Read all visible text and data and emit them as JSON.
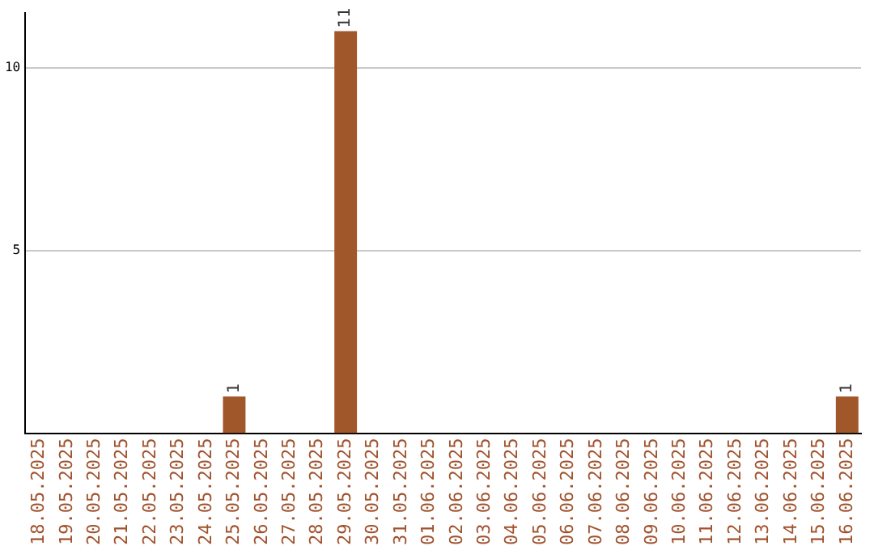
{
  "chart_data": {
    "type": "bar",
    "categories": [
      "18.05.2025",
      "19.05.2025",
      "20.05.2025",
      "21.05.2025",
      "22.05.2025",
      "23.05.2025",
      "24.05.2025",
      "25.05.2025",
      "26.05.2025",
      "27.05.2025",
      "28.05.2025",
      "29.05.2025",
      "30.05.2025",
      "31.05.2025",
      "01.06.2025",
      "02.06.2025",
      "03.06.2025",
      "04.06.2025",
      "05.06.2025",
      "06.06.2025",
      "07.06.2025",
      "08.06.2025",
      "09.06.2025",
      "10.06.2025",
      "11.06.2025",
      "12.06.2025",
      "13.06.2025",
      "14.06.2025",
      "15.06.2025",
      "16.06.2025"
    ],
    "values": [
      0,
      0,
      0,
      0,
      0,
      0,
      0,
      1,
      0,
      0,
      0,
      11,
      0,
      0,
      0,
      0,
      0,
      0,
      0,
      0,
      0,
      0,
      0,
      0,
      0,
      0,
      0,
      0,
      0,
      1
    ],
    "value_labels": [
      null,
      null,
      null,
      null,
      null,
      null,
      null,
      "1",
      null,
      null,
      null,
      "11",
      null,
      null,
      null,
      null,
      null,
      null,
      null,
      null,
      null,
      null,
      null,
      null,
      null,
      null,
      null,
      null,
      null,
      "1"
    ],
    "color": "#a0572a",
    "ylim": [
      0,
      11.5
    ],
    "yticks": [
      5,
      10
    ],
    "grid": "y",
    "legend": false
  }
}
